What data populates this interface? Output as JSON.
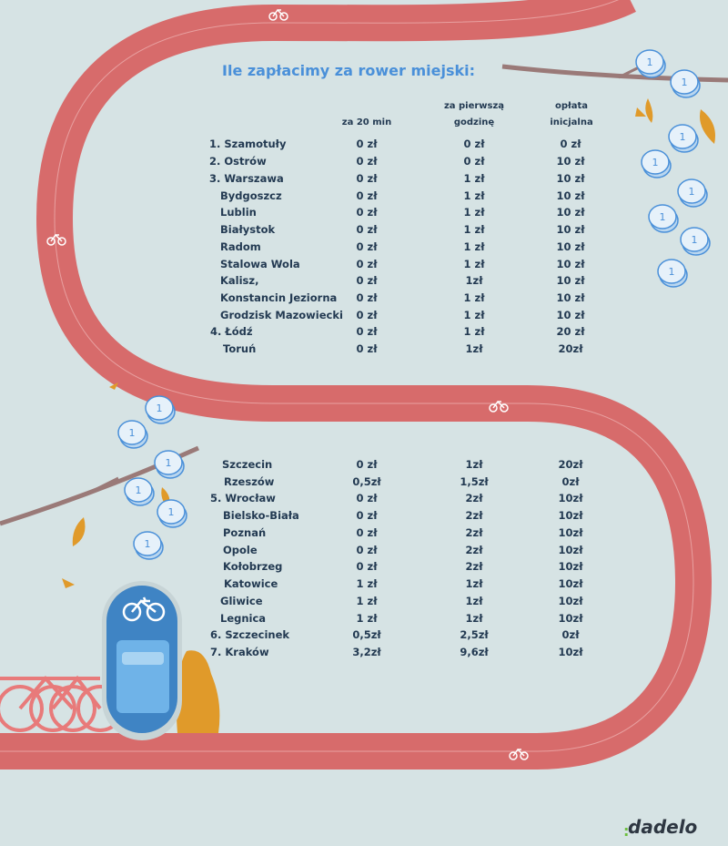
{
  "title": "Ile zapłacimy za rower miejski:",
  "headers": {
    "col1": "za 20 min",
    "col2_l1": "za pierwszą",
    "col2_l2": "godzinę",
    "col3_l1": "opłata",
    "col3_l2": "inicjalna"
  },
  "rows": [
    {
      "name": "1. Szamotuły",
      "v1": "0 zł",
      "v2": "0 zł",
      "v3": "0 zł"
    },
    {
      "name": "2. Ostrów",
      "v1": "0 zł",
      "v2": "0 zł",
      "v3": "10 zł"
    },
    {
      "name": "3. Warszawa",
      "v1": "0 zł",
      "v2": "1 zł",
      "v3": "10 zł"
    },
    {
      "name": "Bydgoszcz",
      "v1": "0 zł",
      "v2": "1 zł",
      "v3": "10 zł"
    },
    {
      "name": "Lublin",
      "v1": "0 zł",
      "v2": "1 zł",
      "v3": "10 zł"
    },
    {
      "name": "Białystok",
      "v1": "0 zł",
      "v2": "1 zł",
      "v3": "10 zł"
    },
    {
      "name": "Radom",
      "v1": "0 zł",
      "v2": "1 zł",
      "v3": "10 zł"
    },
    {
      "name": "Stalowa Wola",
      "v1": "0 zł",
      "v2": "1 zł",
      "v3": "10 zł"
    },
    {
      "name": "Kalisz,",
      "v1": "0 zł",
      "v2": "1zł",
      "v3": "10 zł"
    },
    {
      "name": "Konstancin Jeziorna",
      "v1": "0 zł",
      "v2": "1 zł",
      "v3": "10 zł"
    },
    {
      "name": "Grodzisk Mazowiecki",
      "v1": "0 zł",
      "v2": "1 zł",
      "v3": "10 zł"
    },
    {
      "name": "4. Łódź",
      "v1": "0 zł",
      "v2": "1 zł",
      "v3": "20 zł"
    },
    {
      "name": "Toruń",
      "v1": "0 zł",
      "v2": "1zł",
      "v3": "20zł"
    },
    {
      "name": "Szczecin",
      "v1": "0 zł",
      "v2": "1zł",
      "v3": "20zł"
    },
    {
      "name": "Rzeszów",
      "v1": "0,5zł",
      "v2": "1,5zł",
      "v3": "0zł"
    },
    {
      "name": "5. Wrocław",
      "v1": "0 zł",
      "v2": "2zł",
      "v3": "10zł"
    },
    {
      "name": "Bielsko-Biała",
      "v1": "0 zł",
      "v2": "2zł",
      "v3": "10zł"
    },
    {
      "name": "Poznań",
      "v1": "0 zł",
      "v2": "2zł",
      "v3": "10zł"
    },
    {
      "name": "Opole",
      "v1": "0 zł",
      "v2": "2zł",
      "v3": "10zł"
    },
    {
      "name": "Kołobrzeg",
      "v1": "0 zł",
      "v2": "2zł",
      "v3": "10zł"
    },
    {
      "name": "Katowice",
      "v1": "1 zł",
      "v2": "1zł",
      "v3": "10zł"
    },
    {
      "name": "Gliwice",
      "v1": "1 zł",
      "v2": "1zł",
      "v3": "10zł"
    },
    {
      "name": "Legnica",
      "v1": "1 zł",
      "v2": "1zł",
      "v3": "10zł"
    },
    {
      "name": "6. Szczecinek",
      "v1": "0,5zł",
      "v2": "2,5zł",
      "v3": "0zł"
    },
    {
      "name": "7. Kraków",
      "v1": "3,2zł",
      "v2": "9,6zł",
      "v3": "10zł"
    }
  ],
  "coin_label": "1",
  "logo": "dadelo",
  "colors": {
    "background": "#d6e3e4",
    "track": "#d76b6b",
    "title": "#4a90d9",
    "text": "#233a52",
    "coin": "#4a90d9",
    "leaf": "#e09a2a",
    "branch": "#9a7a78"
  }
}
